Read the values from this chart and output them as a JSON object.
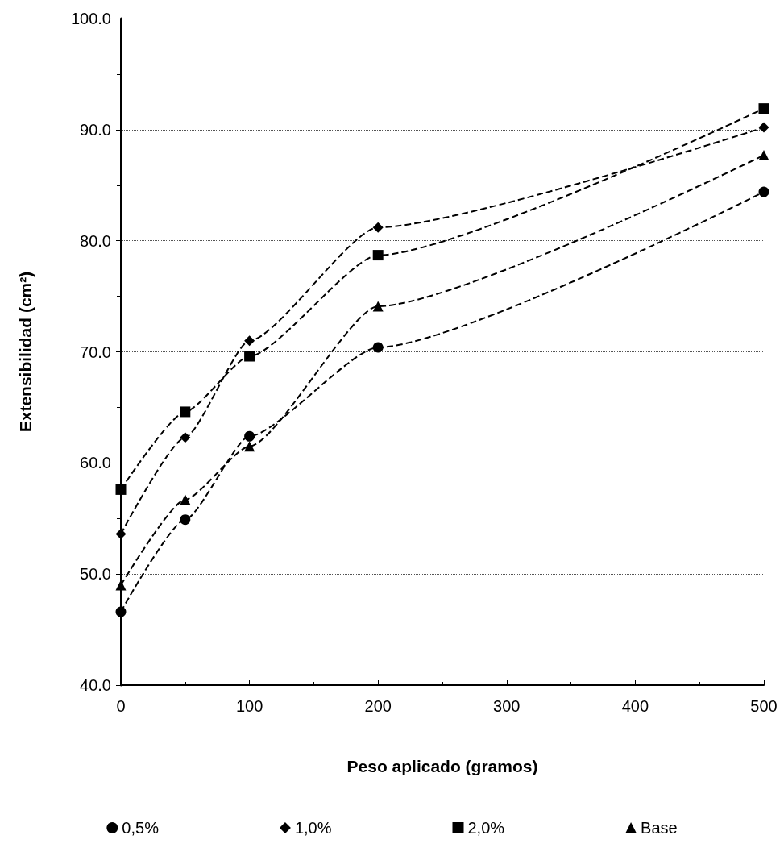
{
  "chart_data": {
    "type": "line",
    "xlabel": "Peso aplicado (gramos)",
    "ylabel": "Extensibilidad (cm²)",
    "x": [
      0,
      50,
      100,
      200,
      500
    ],
    "series": [
      {
        "name": "0,5%",
        "color": "#000000",
        "marker": "circle",
        "values": [
          46.6,
          54.9,
          62.4,
          70.4,
          84.4
        ]
      },
      {
        "name": "1,0%",
        "color": "#000000",
        "marker": "diamond",
        "values": [
          53.6,
          62.3,
          71.0,
          81.2,
          90.2
        ]
      },
      {
        "name": "2,0%",
        "color": "#000000",
        "marker": "square",
        "values": [
          57.6,
          64.6,
          69.6,
          78.7,
          91.9
        ]
      },
      {
        "name": "Base",
        "color": "#000000",
        "marker": "triangle",
        "values": [
          49.0,
          56.7,
          61.5,
          74.1,
          87.7
        ]
      }
    ],
    "xlim": [
      0,
      500
    ],
    "xticks": [
      0,
      100,
      200,
      300,
      400,
      500
    ],
    "ylim": [
      40,
      100
    ],
    "yticks": [
      {
        "value": 40,
        "label": "40.0"
      },
      {
        "value": 50,
        "label": "50.0"
      },
      {
        "value": 60,
        "label": "60.0"
      },
      {
        "value": 70,
        "label": "70.0"
      },
      {
        "value": 80,
        "label": "80.0"
      },
      {
        "value": 90,
        "label": "90.0"
      },
      {
        "value": 100,
        "label": "100.0"
      }
    ],
    "grid": "y",
    "legend": "bottom",
    "line_style": "dashed"
  }
}
